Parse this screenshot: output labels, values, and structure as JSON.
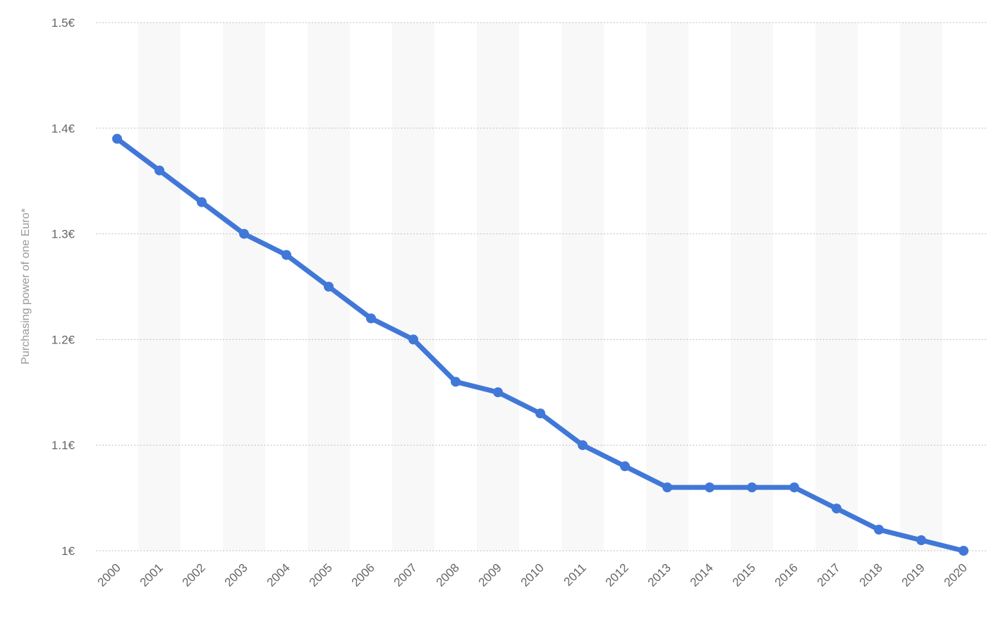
{
  "chart_data": {
    "type": "line",
    "ylabel": "Purchasing power of one Euro*",
    "xlabel": "",
    "x": [
      "2000",
      "2001",
      "2002",
      "2003",
      "2004",
      "2005",
      "2006",
      "2007",
      "2008",
      "2009",
      "2010",
      "2011",
      "2012",
      "2013",
      "2014",
      "2015",
      "2016",
      "2017",
      "2018",
      "2019",
      "2020"
    ],
    "series": [
      {
        "values": [
          1.39,
          1.36,
          1.33,
          1.3,
          1.28,
          1.25,
          1.22,
          1.2,
          1.16,
          1.15,
          1.13,
          1.1,
          1.08,
          1.06,
          1.06,
          1.06,
          1.06,
          1.04,
          1.02,
          1.01,
          1.0
        ],
        "color": "#4178d8"
      }
    ],
    "yticks": [
      1.0,
      1.1,
      1.2,
      1.3,
      1.4,
      1.5
    ],
    "ytick_labels": [
      "1€",
      "1.1€",
      "1.2€",
      "1.3€",
      "1.4€",
      "1.5€"
    ],
    "ylim": [
      1.0,
      1.5
    ],
    "grid": true,
    "colors": {
      "line": "#4178d8",
      "grid": "#bdbdbd",
      "band": "#f8f8f8",
      "tick_text": "#666666",
      "axis_label": "#999999"
    }
  }
}
